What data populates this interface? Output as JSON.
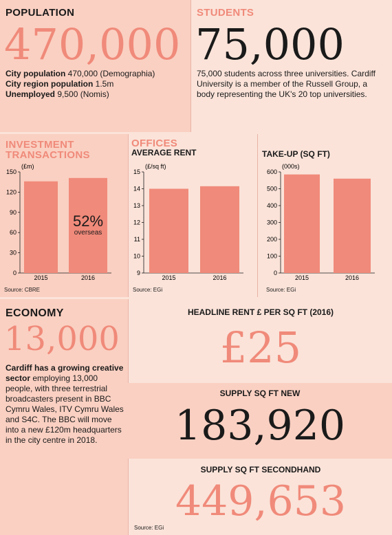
{
  "colors": {
    "panel": "#fad0c2",
    "panel_light": "#fbe3d9",
    "coral": "#f08a7a",
    "bar": "#f08a7a",
    "dark": "#1a1a1a"
  },
  "population": {
    "heading": "POPULATION",
    "figure": "470,000",
    "lines": [
      {
        "bold": "City population",
        "rest": " 470,000 (Demographia)"
      },
      {
        "bold": "City region population",
        "rest": " 1.5m"
      },
      {
        "bold": "Unemployed",
        "rest": " 9,500 (Nomis)"
      }
    ]
  },
  "students": {
    "heading": "STUDENTS",
    "figure": "75,000",
    "text": "75,000 students across three universities. Cardiff University is a member of the Russell Group, a body representing the UK's 20 top universities."
  },
  "investment": {
    "heading_line1": "INVESTMENT",
    "heading_line2": "TRANSACTIONS",
    "source": "Source: CBRE",
    "annotation_value": "52%",
    "annotation_text": "overseas"
  },
  "offices": {
    "heading": "OFFICES",
    "avg_rent_title": "AVERAGE RENT",
    "avg_rent_source": "Source: EGi",
    "takeup_title": "TAKE-UP (SQ FT)",
    "takeup_source": "Source: EGi"
  },
  "economy": {
    "heading": "ECONOMY",
    "figure": "13,000",
    "text_bold": "Cardiff has a growing creative sector",
    "text_rest": " employing 13,000 people, with three terrestrial broadcasters present in BBC Cymru Wales, ITV Cymru Wales and S4C. The BBC will move into a new £120m headquarters in the city centre in 2018."
  },
  "headline_rent": {
    "label": "HEADLINE RENT £ PER SQ FT (2016)",
    "figure": "£25"
  },
  "supply_new": {
    "label": "SUPPLY SQ FT NEW",
    "figure": "183,920"
  },
  "supply_secondhand": {
    "label": "SUPPLY SQ FT SECONDHAND",
    "figure": "449,653",
    "source": "Source: EGi"
  },
  "chart_data": [
    {
      "type": "bar",
      "title": "INVESTMENT TRANSACTIONS",
      "unit_label": "£m",
      "categories": [
        "2015",
        "2016"
      ],
      "values": [
        136,
        141
      ],
      "ylim": [
        0,
        150
      ],
      "yticks": [
        0,
        30,
        60,
        90,
        120,
        150
      ],
      "grid": false
    },
    {
      "type": "bar",
      "title": "AVERAGE RENT",
      "unit_label": "£/sq ft",
      "categories": [
        "2015",
        "2016"
      ],
      "values": [
        14.0,
        14.15
      ],
      "ylim": [
        9,
        15
      ],
      "yticks": [
        9,
        10,
        11,
        12,
        13,
        14,
        15
      ],
      "grid": false
    },
    {
      "type": "bar",
      "title": "TAKE-UP (SQ FT)",
      "unit_label": "000s",
      "categories": [
        "2015",
        "2016"
      ],
      "values": [
        585,
        560
      ],
      "ylim": [
        0,
        600
      ],
      "yticks": [
        0,
        100,
        200,
        300,
        400,
        500,
        600
      ],
      "grid": false
    }
  ]
}
